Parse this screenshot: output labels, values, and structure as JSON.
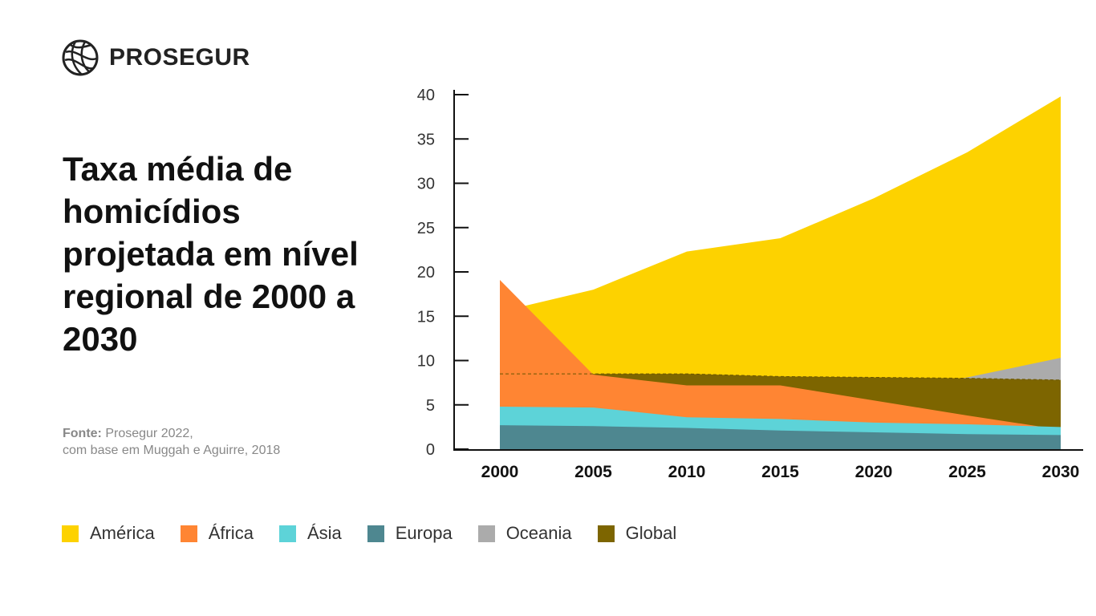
{
  "brand": {
    "name": "PROSEGUR"
  },
  "title": "Taxa média de homicídios projetada em nível regional de 2000 a 2030",
  "source": {
    "label": "Fonte:",
    "line1": "Prosegur 2022,",
    "line2": "com base em Muggah e Aguirre, 2018"
  },
  "chart_data": {
    "type": "area",
    "x": [
      2000,
      2005,
      2010,
      2015,
      2020,
      2025,
      2030
    ],
    "ylim": [
      0,
      40
    ],
    "yticks": [
      0,
      5,
      10,
      15,
      20,
      25,
      30,
      35,
      40
    ],
    "grid": false,
    "legend_position": "bottom",
    "series": [
      {
        "name": "América",
        "color": "#FDD200",
        "values": [
          15.5,
          18,
          22.3,
          23.8,
          28.3,
          33.5,
          39.8
        ]
      },
      {
        "name": "África",
        "color": "#FF8533",
        "values": [
          19.1,
          8.4,
          7.2,
          7.2,
          5.5,
          3.8,
          2.2
        ]
      },
      {
        "name": "Ásia",
        "color": "#5DD3D8",
        "values": [
          4.8,
          4.7,
          3.6,
          3.4,
          3.0,
          2.8,
          2.5
        ]
      },
      {
        "name": "Europa",
        "color": "#4E8790",
        "values": [
          2.7,
          2.6,
          2.4,
          2.1,
          1.9,
          1.7,
          1.6
        ]
      },
      {
        "name": "Oceania",
        "color": "#ABABAB",
        "values": [
          4.3,
          4.4,
          4.5,
          5.1,
          6.4,
          8.1,
          10.3
        ]
      },
      {
        "name": "Global",
        "color": "#7D6500",
        "values": [
          8.5,
          8.5,
          8.5,
          8.2,
          8.1,
          8.0,
          7.8
        ]
      }
    ]
  }
}
